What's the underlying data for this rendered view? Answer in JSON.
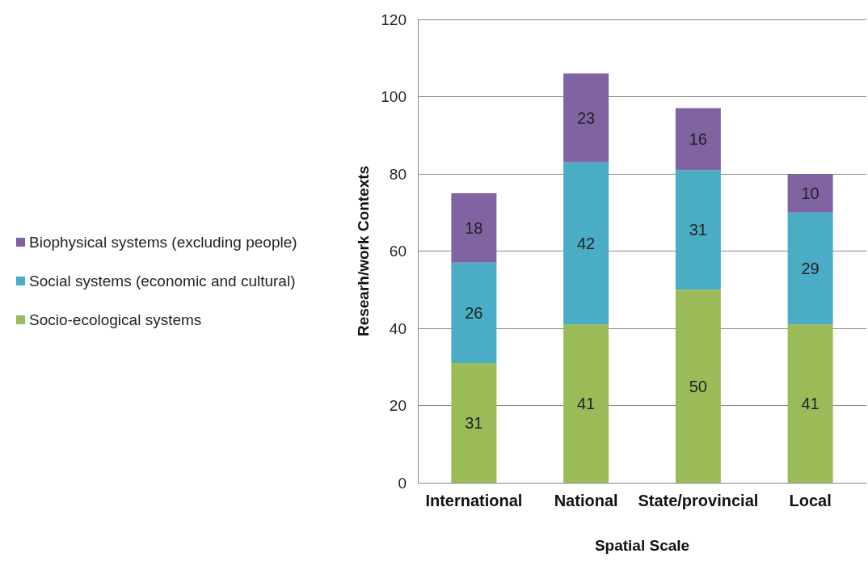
{
  "chart_data": {
    "type": "bar",
    "stacked": true,
    "xlabel": "Spatial Scale",
    "ylabel": "Researh/work Contexts",
    "categories": [
      "International",
      "National",
      "State/provincial",
      "Local"
    ],
    "series": [
      {
        "name": "Socio-ecological systems",
        "color": "#9bbb59",
        "values": [
          31,
          41,
          50,
          41
        ]
      },
      {
        "name": "Social systems (economic and cultural)",
        "color": "#4bacc6",
        "values": [
          26,
          42,
          31,
          29
        ]
      },
      {
        "name": "Biophysical systems (excluding people)",
        "color": "#8064a2",
        "values": [
          18,
          23,
          16,
          10
        ]
      }
    ],
    "ylim": [
      0,
      120
    ],
    "yticks": [
      0,
      20,
      40,
      60,
      80,
      100,
      120
    ],
    "grid": "y",
    "legend": "left",
    "data_labels": true
  }
}
